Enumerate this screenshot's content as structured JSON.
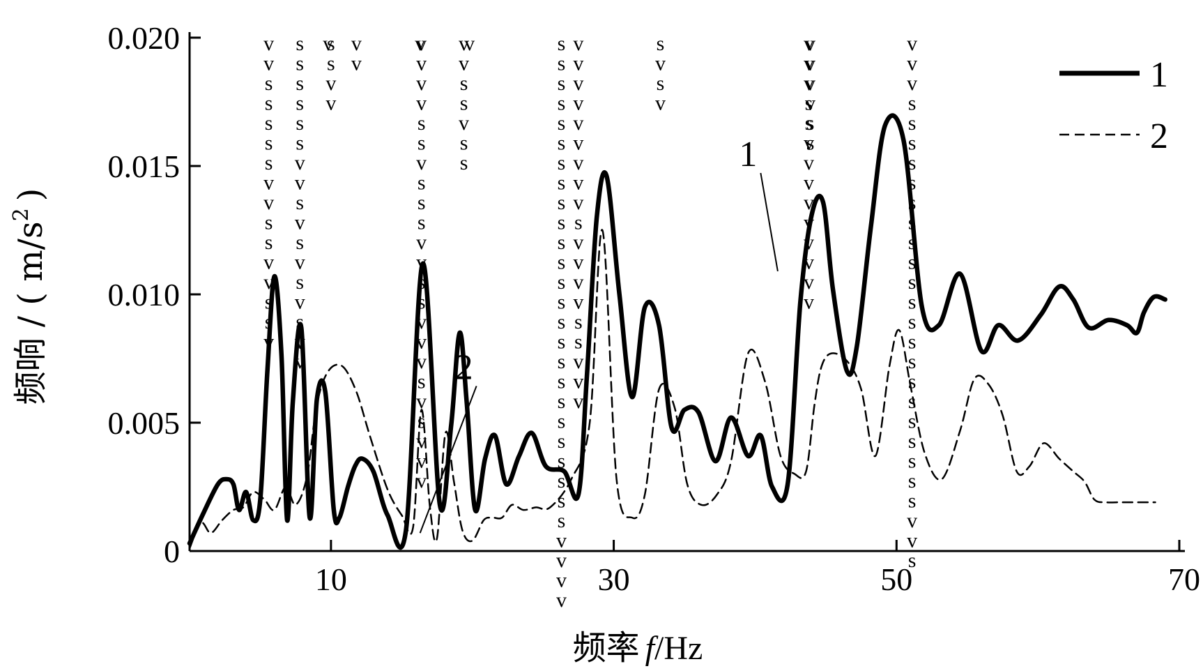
{
  "chart_data": {
    "type": "line",
    "xlabel": "频率",
    "xlabel_symbol": "f",
    "xlabel_unit": "/Hz",
    "ylabel": "频响 / ( m/s",
    "ylabel_sup": "2",
    "ylabel_close": ")",
    "xlim": [
      0,
      70
    ],
    "ylim": [
      0,
      0.02
    ],
    "x_ticks": [
      10,
      30,
      50,
      70
    ],
    "x_tick_labels": [
      "10",
      "30",
      "50",
      "70"
    ],
    "y_ticks": [
      0,
      0.005,
      0.01,
      0.015,
      0.02
    ],
    "y_tick_labels": [
      "0",
      "0.005",
      "0.010",
      "0.015",
      "0.020"
    ],
    "grid": false,
    "legend_position": "top-right",
    "series": [
      {
        "name": "1",
        "style": "solid",
        "x": [
          0.0,
          1.0,
          2.0,
          2.6,
          3.1,
          3.5,
          4.0,
          4.5,
          5.0,
          5.5,
          6.0,
          6.5,
          6.9,
          7.3,
          7.9,
          8.5,
          9.0,
          9.6,
          10.2,
          10.6,
          11.2,
          11.7,
          12.2,
          13.0,
          14.0,
          15.3,
          16.5,
          17.7,
          18.5,
          19.1,
          19.6,
          20.2,
          20.9,
          21.6,
          22.4,
          23.3,
          24.2,
          25.2,
          26.5,
          27.5,
          28.1,
          28.8,
          29.5,
          30.4,
          31.3,
          32.2,
          33.2,
          34.1,
          35.0,
          36.0,
          37.2,
          38.3,
          39.5,
          40.4,
          41.2,
          42.3,
          43.2,
          44.0,
          44.8,
          45.5,
          46.5,
          47.2,
          48.2,
          49.2,
          50.5,
          51.8,
          53.0,
          54.5,
          56.0,
          57.2,
          58.6,
          60.2,
          61.5,
          62.5,
          63.6,
          65.0,
          66.3,
          67.0,
          67.5,
          68.2,
          69.0
        ],
        "y": [
          0.0003,
          0.0015,
          0.0026,
          0.0028,
          0.0026,
          0.0016,
          0.0023,
          0.0012,
          0.002,
          0.007,
          0.0107,
          0.0076,
          0.0012,
          0.0058,
          0.0087,
          0.0013,
          0.0059,
          0.0062,
          0.0016,
          0.0013,
          0.0025,
          0.0033,
          0.0036,
          0.0031,
          0.0014,
          0.0008,
          0.0112,
          0.0018,
          0.0049,
          0.0085,
          0.0058,
          0.0016,
          0.0036,
          0.0045,
          0.0026,
          0.0037,
          0.0046,
          0.0033,
          0.0031,
          0.0022,
          0.0068,
          0.013,
          0.0146,
          0.01,
          0.006,
          0.0095,
          0.0088,
          0.0048,
          0.0055,
          0.0054,
          0.0035,
          0.0052,
          0.0037,
          0.0045,
          0.0025,
          0.0026,
          0.0097,
          0.0131,
          0.0136,
          0.0102,
          0.007,
          0.008,
          0.0127,
          0.0166,
          0.016,
          0.0095,
          0.0088,
          0.0108,
          0.0078,
          0.0088,
          0.0082,
          0.0092,
          0.0103,
          0.0098,
          0.0087,
          0.009,
          0.0088,
          0.0085,
          0.0093,
          0.0099,
          0.0098
        ]
      },
      {
        "name": "2",
        "style": "dashed",
        "x": [
          0.0,
          0.8,
          1.5,
          2.3,
          3.1,
          3.8,
          4.5,
          5.3,
          6.0,
          6.8,
          7.5,
          8.3,
          9.0,
          9.8,
          10.8,
          11.8,
          12.8,
          14.0,
          15.0,
          15.8,
          16.4,
          17.0,
          17.5,
          18.1,
          18.7,
          19.3,
          20.0,
          20.8,
          21.4,
          22.1,
          22.8,
          23.6,
          24.5,
          25.5,
          27.0,
          28.3,
          29.2,
          30.2,
          31.3,
          32.2,
          33.2,
          34.3,
          35.2,
          36.2,
          37.3,
          38.3,
          39.5,
          40.7,
          41.8,
          42.8,
          43.6,
          44.2,
          44.7,
          45.4,
          46.5,
          47.5,
          48.5,
          49.5,
          50.2,
          51.0,
          52.0,
          53.2,
          54.5,
          55.5,
          56.5,
          57.5,
          58.5,
          59.4,
          60.4,
          61.5,
          62.5,
          63.3,
          64.0,
          64.8,
          65.8,
          66.7,
          67.5,
          68.3
        ],
        "y": [
          0.0001,
          0.0011,
          0.0007,
          0.0012,
          0.0016,
          0.0017,
          0.0023,
          0.002,
          0.0016,
          0.0025,
          0.0018,
          0.0029,
          0.0057,
          0.007,
          0.0072,
          0.0062,
          0.0044,
          0.0024,
          0.0014,
          0.0009,
          0.0055,
          0.0017,
          0.0005,
          0.0046,
          0.0027,
          0.0008,
          0.0004,
          0.0012,
          0.0013,
          0.0013,
          0.0018,
          0.0016,
          0.0017,
          0.0017,
          0.0028,
          0.005,
          0.0125,
          0.0028,
          0.0013,
          0.0022,
          0.0063,
          0.0056,
          0.0026,
          0.0018,
          0.0022,
          0.0035,
          0.0077,
          0.0066,
          0.0037,
          0.003,
          0.0031,
          0.0057,
          0.0072,
          0.0077,
          0.0074,
          0.0063,
          0.0037,
          0.0072,
          0.0086,
          0.0064,
          0.0038,
          0.0028,
          0.0047,
          0.0067,
          0.0065,
          0.0053,
          0.0031,
          0.0033,
          0.0042,
          0.0036,
          0.0031,
          0.0027,
          0.002,
          0.0019,
          0.0019,
          0.0019,
          0.0019,
          0.0019
        ]
      }
    ],
    "annotations": [
      {
        "x": 5.6,
        "letters": [
          "v",
          "v",
          "s",
          "s",
          "s",
          "s",
          "s",
          "v",
          "v",
          "s",
          "s",
          "v",
          "v",
          "s",
          "s",
          "v"
        ]
      },
      {
        "x": 7.8,
        "letters": [
          "s",
          "s",
          "s",
          "s",
          "s",
          "s",
          "v",
          "v",
          "s",
          "v",
          "s",
          "v",
          "s",
          "v",
          "s",
          "v",
          "v"
        ]
      },
      {
        "x": 9.8,
        "letters": [
          "v"
        ]
      },
      {
        "x": 10.0,
        "letters": [
          "s",
          "s",
          "v",
          "v"
        ]
      },
      {
        "x": 11.8,
        "letters": [
          "v",
          "v"
        ]
      },
      {
        "x": 16.3,
        "letters": [
          "v"
        ]
      },
      {
        "x": 16.4,
        "letters": [
          "v",
          "v",
          "v",
          "v",
          "s",
          "s",
          "v",
          "s",
          "s",
          "s",
          "v",
          "v",
          "s",
          "s",
          "v",
          "v",
          "v",
          "s",
          "v",
          "s",
          "v",
          "v",
          "v"
        ]
      },
      {
        "x": 19.4,
        "letters": [
          "v",
          "v",
          "s",
          "s",
          "v",
          "s",
          "s"
        ]
      },
      {
        "x": 19.8,
        "letters": [
          "v"
        ]
      },
      {
        "x": 26.3,
        "letters": [
          "s",
          "s",
          "s",
          "s",
          "s",
          "s",
          "s",
          "s",
          "s",
          "s",
          "s",
          "s",
          "s",
          "s",
          "s",
          "s",
          "s",
          "s",
          "s",
          "s",
          "s",
          "s",
          "s",
          "s",
          "s",
          "v",
          "v",
          "v",
          "v"
        ]
      },
      {
        "x": 27.5,
        "letters": [
          "v",
          "v",
          "v",
          "v",
          "v",
          "v",
          "v",
          "v",
          "v",
          "s",
          "v",
          "v",
          "v",
          "v",
          "s",
          "s",
          "v",
          "v",
          "v"
        ]
      },
      {
        "x": 33.3,
        "letters": [
          "s",
          "v",
          "s",
          "v"
        ]
      },
      {
        "x": 43.8,
        "letters": [
          "v",
          "v",
          "v",
          "s",
          "s",
          "v",
          "v",
          "v",
          "v",
          "v",
          "v",
          "v",
          "v",
          "v"
        ]
      },
      {
        "x": 43.9,
        "letters": [
          "v",
          "v",
          "v",
          "v",
          "s",
          "s"
        ]
      },
      {
        "x": 51.1,
        "letters": [
          "v",
          "v",
          "v",
          "s",
          "s",
          "s",
          "s",
          "s",
          "s",
          "s",
          "s",
          "s",
          "s",
          "s",
          "s",
          "s",
          "s",
          "s",
          "s",
          "s",
          "s",
          "s",
          "s",
          "s",
          "v",
          "v",
          "s"
        ]
      }
    ],
    "callouts": [
      {
        "label": "1",
        "target_x": 41.6,
        "target_y": 0.0109,
        "label_x": 39.8,
        "label_y": 0.015
      },
      {
        "label": "2",
        "target_x": 16.3,
        "target_y": 0.0007,
        "label_x": 19.7,
        "label_y": 0.0067
      }
    ]
  }
}
